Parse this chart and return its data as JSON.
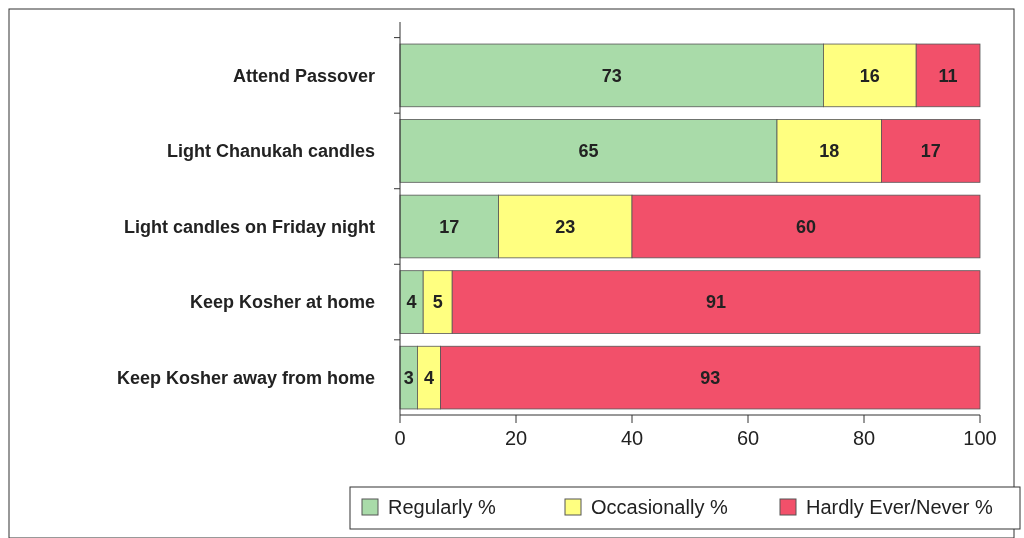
{
  "chart_data": {
    "type": "bar",
    "orientation": "horizontal",
    "stacked": true,
    "categories": [
      "Attend Passover",
      "Light Chanukah  candles",
      "Light candles on Friday night",
      "Keep Kosher at home",
      "Keep Kosher away from home"
    ],
    "series": [
      {
        "name": "Regularly %",
        "color": "#a9dba9",
        "values": [
          73,
          65,
          17,
          4,
          3
        ]
      },
      {
        "name": "Occasionally %",
        "color": "#ffff80",
        "values": [
          16,
          18,
          23,
          5,
          4
        ]
      },
      {
        "name": "Hardly Ever/Never %",
        "color": "#f2506a",
        "values": [
          11,
          17,
          60,
          91,
          93
        ]
      }
    ],
    "xlim": [
      0,
      100
    ],
    "xticks": [
      0,
      20,
      40,
      60,
      80,
      100
    ],
    "data_labels": true,
    "legend": "bottom",
    "grid": false
  }
}
